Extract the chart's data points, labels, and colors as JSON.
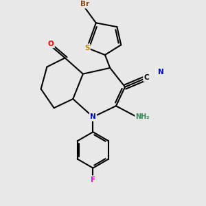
{
  "bg_color": "#e8e8e8",
  "bond_color": "#000000",
  "atom_colors": {
    "Br": "#8B4513",
    "S": "#B8860B",
    "O": "#FF0000",
    "N": "#0000CD",
    "F": "#FF00CC",
    "C": "#000000",
    "H": "#2E8B57"
  },
  "lw": 1.5,
  "fs": 7.5
}
